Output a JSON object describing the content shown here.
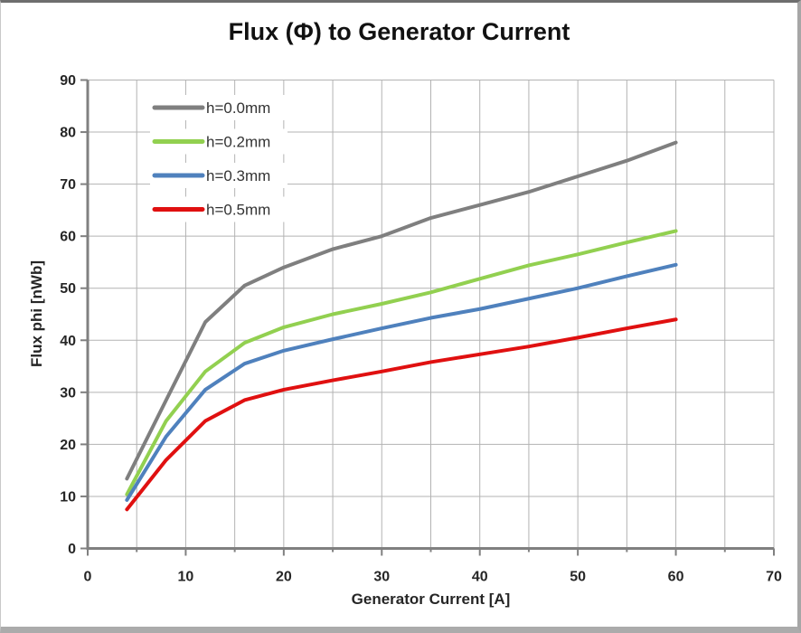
{
  "frame": {
    "title": "Flux (Φ) to Generator Current"
  },
  "chart_data": {
    "type": "line",
    "title": "Flux (Φ) to Generator Current",
    "xlabel": "Generator Current [A]",
    "ylabel": "Flux phi [nWb]",
    "xlim": [
      0,
      70
    ],
    "ylim": [
      0,
      90
    ],
    "x_major_ticks": [
      0,
      10,
      20,
      30,
      40,
      50,
      60,
      70
    ],
    "x_minor_step": 5,
    "y_major_ticks": [
      0,
      10,
      20,
      30,
      40,
      50,
      60,
      70,
      80,
      90
    ],
    "grid": {
      "vertical_every": 5,
      "horizontal_every": 10,
      "visible": true
    },
    "legend_position": "inside-top-left",
    "x": [
      4,
      8,
      12,
      16,
      20,
      25,
      30,
      35,
      40,
      45,
      50,
      55,
      60
    ],
    "series": [
      {
        "name": "h=0.0mm",
        "color": "#7f7f7f",
        "values": [
          13.4,
          28.5,
          43.5,
          50.5,
          54.0,
          57.5,
          60.0,
          63.5,
          66.0,
          68.5,
          71.5,
          74.5,
          78.0
        ]
      },
      {
        "name": "h=0.2mm",
        "color": "#92d050",
        "values": [
          10.4,
          24.5,
          34.0,
          39.5,
          42.5,
          45.0,
          47.0,
          49.2,
          51.8,
          54.4,
          56.5,
          58.8,
          61.0
        ]
      },
      {
        "name": "h=0.3mm",
        "color": "#4f81bd",
        "values": [
          9.3,
          21.5,
          30.5,
          35.5,
          38.0,
          40.2,
          42.3,
          44.3,
          46.0,
          48.0,
          50.0,
          52.3,
          54.5
        ]
      },
      {
        "name": "h=0.5mm",
        "color": "#e01010",
        "values": [
          7.5,
          17.0,
          24.5,
          28.5,
          30.5,
          32.3,
          34.0,
          35.8,
          37.3,
          38.8,
          40.5,
          42.3,
          44.0
        ]
      }
    ]
  },
  "colors": {
    "axis": "#808080",
    "grid": "#b3b3b3",
    "tick_text": "#262626",
    "title_text": "#111111",
    "legend_text": "#333333"
  }
}
